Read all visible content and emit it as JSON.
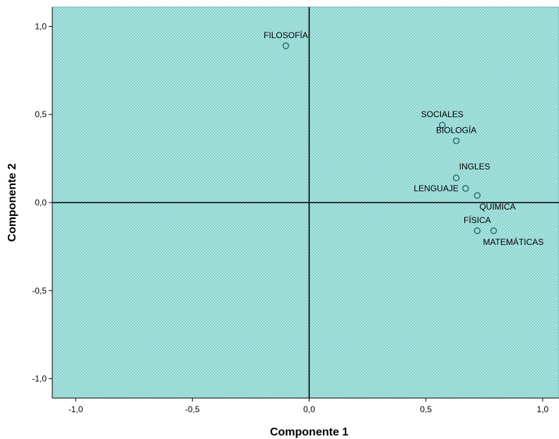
{
  "chart_data": {
    "type": "scatter",
    "xlabel": "Componente 1",
    "ylabel": "Componente 2",
    "xlim": [
      -1.1,
      1.07
    ],
    "ylim": [
      -1.11,
      1.11
    ],
    "xticks": [
      -1.0,
      -0.5,
      0.0,
      0.5,
      1.0
    ],
    "yticks": [
      -1.0,
      -0.5,
      0.0,
      0.5,
      1.0
    ],
    "xtick_labels": [
      "-1,0",
      "-0,5",
      "0,0",
      "0,5",
      "1,0"
    ],
    "ytick_labels": [
      "-1,0",
      "-0,5",
      "0,0",
      "0,5",
      "1,0"
    ],
    "reference_lines": {
      "x": 0,
      "y": 0
    },
    "grid": false,
    "colors": {
      "background": "#7fcfca",
      "hatch": "#b9e8e4",
      "frame": "#5fb6b0",
      "point": "#2b6f73",
      "axis_line": "#000000"
    },
    "points": [
      {
        "label": "FILOSOFÍA",
        "x": -0.1,
        "y": 0.89,
        "label_pos": "above"
      },
      {
        "label": "SOCIALES",
        "x": 0.57,
        "y": 0.44,
        "label_pos": "above"
      },
      {
        "label": "BIOLOGÍA",
        "x": 0.63,
        "y": 0.35,
        "label_pos": "above"
      },
      {
        "label": "INGLES",
        "x": 0.63,
        "y": 0.14,
        "label_pos": "above-right"
      },
      {
        "label": "LENGUAJE",
        "x": 0.67,
        "y": 0.08,
        "label_pos": "left"
      },
      {
        "label": "QUÍMICA",
        "x": 0.72,
        "y": 0.04,
        "label_pos": "below"
      },
      {
        "label": "FÍSICA",
        "x": 0.72,
        "y": -0.16,
        "label_pos": "above"
      },
      {
        "label": "MATEMÁTICAS",
        "x": 0.79,
        "y": -0.16,
        "label_pos": "below"
      }
    ]
  }
}
